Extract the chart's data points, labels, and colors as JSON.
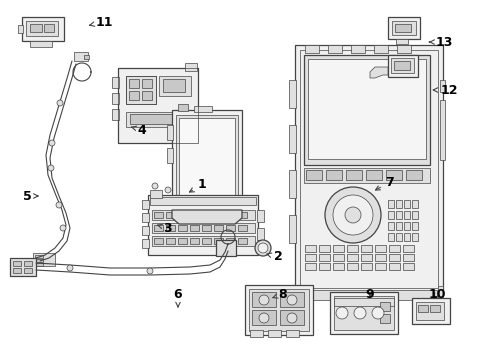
{
  "bg_color": "#ffffff",
  "lc": "#444444",
  "fc_light": "#f0f0f0",
  "fc_mid": "#e0e0e0",
  "fc_dark": "#c8c8c8",
  "lw_main": 0.9,
  "lw_thin": 0.5,
  "figsize": [
    4.89,
    3.6
  ],
  "dpi": 100,
  "labels": {
    "1": [
      202,
      185,
      186,
      194
    ],
    "2": [
      278,
      257,
      263,
      253
    ],
    "3": [
      168,
      228,
      154,
      224
    ],
    "4": [
      142,
      130,
      128,
      126
    ],
    "5": [
      27,
      196,
      42,
      196
    ],
    "6": [
      178,
      294,
      178,
      308
    ],
    "7": [
      390,
      182,
      372,
      192
    ],
    "8": [
      283,
      294,
      272,
      298
    ],
    "9": [
      370,
      294,
      370,
      300
    ],
    "10": [
      437,
      294,
      430,
      300
    ],
    "11": [
      104,
      22,
      86,
      26
    ],
    "12": [
      449,
      90,
      432,
      90
    ],
    "13": [
      444,
      42,
      426,
      42
    ]
  }
}
